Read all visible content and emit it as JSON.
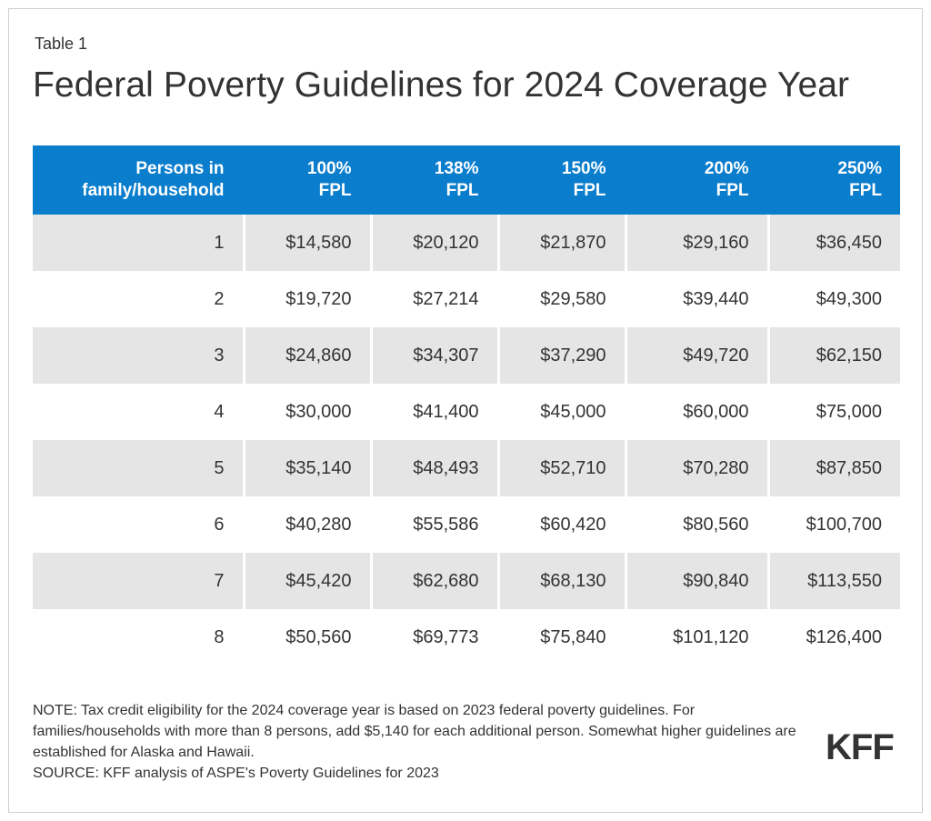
{
  "table_label": "Table 1",
  "title": "Federal Poverty Guidelines for 2024 Coverage Year",
  "header": {
    "col0": [
      "Persons in",
      "family/household"
    ],
    "col1": [
      "100%",
      "FPL"
    ],
    "col2": [
      "138%",
      "FPL"
    ],
    "col3": [
      "150%",
      "FPL"
    ],
    "col4": [
      "200%",
      "FPL"
    ],
    "col5": [
      "250%",
      "FPL"
    ]
  },
  "rows": [
    [
      "1",
      "$14,580",
      "$20,120",
      "$21,870",
      "$29,160",
      "$36,450"
    ],
    [
      "2",
      "$19,720",
      "$27,214",
      "$29,580",
      "$39,440",
      "$49,300"
    ],
    [
      "3",
      "$24,860",
      "$34,307",
      "$37,290",
      "$49,720",
      "$62,150"
    ],
    [
      "4",
      "$30,000",
      "$41,400",
      "$45,000",
      "$60,000",
      "$75,000"
    ],
    [
      "5",
      "$35,140",
      "$48,493",
      "$52,710",
      "$70,280",
      "$87,850"
    ],
    [
      "6",
      "$40,280",
      "$55,586",
      "$60,420",
      "$80,560",
      "$100,700"
    ],
    [
      "7",
      "$45,420",
      "$62,680",
      "$68,130",
      "$90,840",
      "$113,550"
    ],
    [
      "8",
      "$50,560",
      "$69,773",
      "$75,840",
      "$101,120",
      "$126,400"
    ]
  ],
  "note": "NOTE: Tax credit eligibility for the 2024 coverage year is based on 2023 federal poverty guidelines. For families/households with more than 8 persons, add $5,140 for each additional person. Somewhat higher guidelines are established for Alaska and Hawaii.",
  "source": "SOURCE: KFF analysis of ASPE's Poverty Guidelines for 2023",
  "logo": "KFF",
  "colors": {
    "header_bg": "#0a7dcd",
    "row_shade": "#e5e5e5",
    "text": "#333333"
  }
}
